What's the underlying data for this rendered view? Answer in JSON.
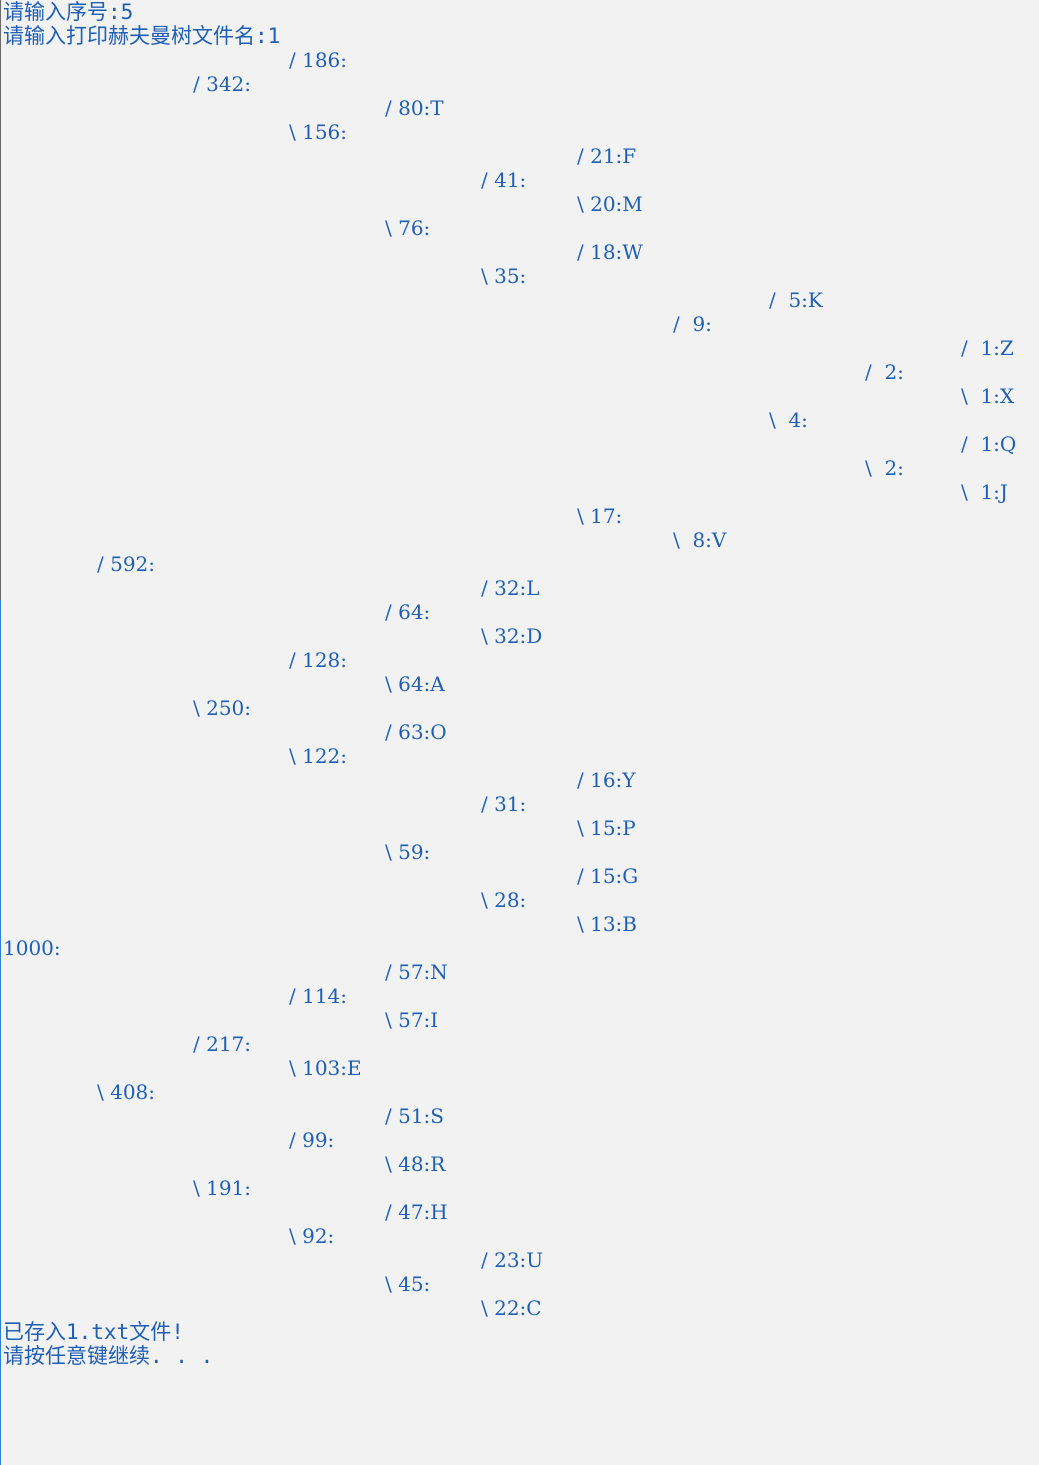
{
  "console": {
    "prompt_index": "请输入序号:5",
    "prompt_filename": "请输入打印赫夫曼树文件名:1",
    "tree_lines": [
      "/ 186:",
      "/ 342:",
      "/ 80:T",
      "\\ 156:",
      "/ 21:F",
      "/ 41:",
      "\\ 20:M",
      "\\ 76:",
      "/ 18:W",
      "\\ 35:",
      "/  5:K",
      "/  9:",
      "/  1:Z",
      "/  2:",
      "\\  1:X",
      "\\  4:",
      "/  1:Q",
      "\\  2:",
      "\\  1:J",
      "\\ 17:",
      "\\  8:V",
      "/ 592:",
      "/ 32:L",
      "/ 64:",
      "\\ 32:D",
      "/ 128:",
      "\\ 64:A",
      "\\ 250:",
      "/ 63:O",
      "\\ 122:",
      "/ 16:Y",
      "/ 31:",
      "\\ 15:P",
      "\\ 59:",
      "/ 15:G",
      "\\ 28:",
      "\\ 13:B",
      "1000:",
      "/ 57:N",
      "/ 114:",
      "\\ 57:I",
      "/ 217:",
      "\\ 103:E",
      "\\ 408:",
      "/ 51:S",
      "/ 99:",
      "\\ 48:R",
      "\\ 191:",
      "/ 47:H",
      "\\ 92:",
      "/ 23:U",
      "\\ 45:",
      "\\ 22:C"
    ],
    "saved_message": "已存入1.txt文件!",
    "continue_prompt": "请按任意键继续. . ."
  },
  "colors": {
    "background": "#f2f2f2",
    "text": "#1f5fb5"
  }
}
